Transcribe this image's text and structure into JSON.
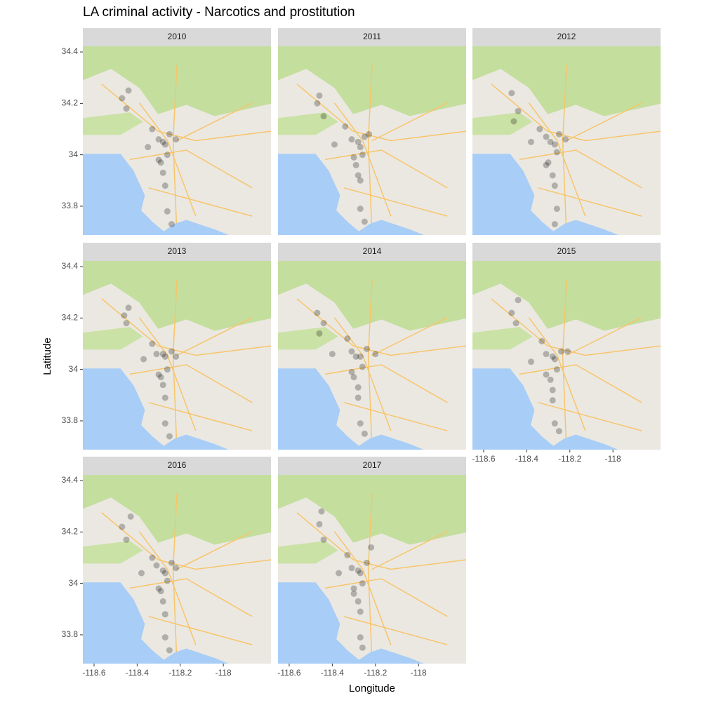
{
  "chart_data": {
    "type": "scatter",
    "title": "LA criminal activity - Narcotics and prostitution",
    "xlabel": "Longitude",
    "ylabel": "Latitude",
    "xlim": [
      -118.652,
      -117.779
    ],
    "ylim": [
      33.688,
      34.422
    ],
    "xticks": [
      -118.6,
      -118.4,
      -118.2,
      -118.0
    ],
    "yticks": [
      33.8,
      34.0,
      34.2,
      34.4
    ],
    "point_color": "#000000",
    "panels": [
      {
        "title": "2010",
        "x": [
          -118.47,
          -118.45,
          -118.44,
          -118.33,
          -118.3,
          -118.28,
          -118.27,
          -118.26,
          -118.25,
          -118.29,
          -118.28,
          -118.3,
          -118.27,
          -118.26,
          -118.24,
          -118.35,
          -118.22
        ],
        "y": [
          34.22,
          34.18,
          34.25,
          34.1,
          34.06,
          34.05,
          34.04,
          34.0,
          34.08,
          33.97,
          33.93,
          33.98,
          33.88,
          33.78,
          33.73,
          34.03,
          34.06
        ]
      },
      {
        "title": "2011",
        "x": [
          -118.46,
          -118.44,
          -118.47,
          -118.34,
          -118.31,
          -118.28,
          -118.27,
          -118.26,
          -118.25,
          -118.29,
          -118.28,
          -118.3,
          -118.27,
          -118.27,
          -118.25,
          -118.39,
          -118.23
        ],
        "y": [
          34.23,
          34.15,
          34.2,
          34.11,
          34.06,
          34.05,
          34.03,
          34.0,
          34.07,
          33.96,
          33.92,
          33.99,
          33.9,
          33.79,
          33.74,
          34.04,
          34.08
        ]
      },
      {
        "title": "2012",
        "x": [
          -118.47,
          -118.44,
          -118.46,
          -118.34,
          -118.31,
          -118.29,
          -118.27,
          -118.26,
          -118.25,
          -118.3,
          -118.28,
          -118.31,
          -118.27,
          -118.26,
          -118.27,
          -118.38,
          -118.22
        ],
        "y": [
          34.24,
          34.17,
          34.13,
          34.1,
          34.07,
          34.05,
          34.04,
          34.01,
          34.08,
          33.97,
          33.92,
          33.96,
          33.88,
          33.79,
          33.73,
          34.05,
          34.06
        ]
      },
      {
        "title": "2013",
        "x": [
          -118.46,
          -118.45,
          -118.44,
          -118.33,
          -118.31,
          -118.28,
          -118.27,
          -118.26,
          -118.24,
          -118.29,
          -118.28,
          -118.3,
          -118.27,
          -118.27,
          -118.25,
          -118.37,
          -118.22
        ],
        "y": [
          34.21,
          34.18,
          34.24,
          34.1,
          34.06,
          34.06,
          34.05,
          34.0,
          34.07,
          33.97,
          33.94,
          33.98,
          33.89,
          33.79,
          33.74,
          34.04,
          34.05
        ]
      },
      {
        "title": "2014",
        "x": [
          -118.47,
          -118.44,
          -118.46,
          -118.33,
          -118.31,
          -118.29,
          -118.27,
          -118.26,
          -118.24,
          -118.3,
          -118.28,
          -118.31,
          -118.28,
          -118.27,
          -118.25,
          -118.4,
          -118.2
        ],
        "y": [
          34.22,
          34.18,
          34.14,
          34.12,
          34.07,
          34.05,
          34.05,
          34.01,
          34.08,
          33.97,
          33.93,
          33.99,
          33.89,
          33.79,
          33.75,
          34.06,
          34.06
        ]
      },
      {
        "title": "2015",
        "x": [
          -118.47,
          -118.45,
          -118.44,
          -118.33,
          -118.31,
          -118.28,
          -118.27,
          -118.26,
          -118.24,
          -118.29,
          -118.28,
          -118.31,
          -118.28,
          -118.27,
          -118.25,
          -118.38,
          -118.21
        ],
        "y": [
          34.22,
          34.18,
          34.27,
          34.11,
          34.06,
          34.05,
          34.04,
          34.0,
          34.07,
          33.96,
          33.92,
          33.98,
          33.88,
          33.79,
          33.76,
          34.03,
          34.07
        ]
      },
      {
        "title": "2016",
        "x": [
          -118.47,
          -118.45,
          -118.43,
          -118.33,
          -118.31,
          -118.28,
          -118.27,
          -118.26,
          -118.24,
          -118.29,
          -118.28,
          -118.3,
          -118.27,
          -118.27,
          -118.25,
          -118.38,
          -118.22
        ],
        "y": [
          34.22,
          34.17,
          34.26,
          34.1,
          34.07,
          34.05,
          34.04,
          34.01,
          34.08,
          33.97,
          33.93,
          33.98,
          33.88,
          33.79,
          33.74,
          34.04,
          34.06
        ]
      },
      {
        "title": "2017",
        "x": [
          -118.46,
          -118.44,
          -118.45,
          -118.33,
          -118.31,
          -118.28,
          -118.27,
          -118.26,
          -118.24,
          -118.3,
          -118.28,
          -118.3,
          -118.27,
          -118.27,
          -118.26,
          -118.37,
          -118.22
        ],
        "y": [
          34.23,
          34.17,
          34.28,
          34.11,
          34.06,
          34.05,
          34.04,
          34.0,
          34.08,
          33.96,
          33.93,
          33.98,
          33.89,
          33.79,
          33.75,
          34.04,
          34.14
        ]
      }
    ]
  }
}
